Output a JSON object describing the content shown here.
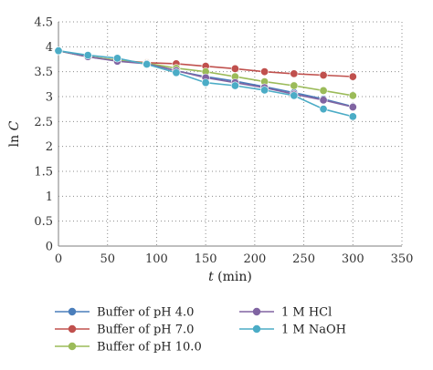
{
  "chart_data": {
    "type": "line",
    "xlabel_var": "t",
    "xlabel_unit": " (min)",
    "ylabel_prefix": "ln ",
    "ylabel_var": "C",
    "xlim": [
      0,
      350
    ],
    "ylim": [
      0,
      4.5
    ],
    "xticks": [
      0,
      50,
      100,
      150,
      200,
      250,
      300,
      350
    ],
    "yticks": [
      0,
      0.5,
      1,
      1.5,
      2,
      2.5,
      3,
      3.5,
      4,
      4.5
    ],
    "x": [
      0,
      30,
      60,
      90,
      120,
      150,
      180,
      210,
      240,
      270,
      300
    ],
    "grid": "dotted",
    "legend_position": "bottom",
    "series": [
      {
        "name": "Buffer of pH 4.0",
        "color": "#4a7ebb",
        "values": [
          3.92,
          3.8,
          3.72,
          3.67,
          3.52,
          3.4,
          3.31,
          3.2,
          3.08,
          2.95,
          2.8
        ]
      },
      {
        "name": "Buffer of pH 7.0",
        "color": "#c0504d",
        "values": [
          3.92,
          3.8,
          3.73,
          3.68,
          3.66,
          3.61,
          3.56,
          3.5,
          3.46,
          3.43,
          3.4
        ]
      },
      {
        "name": "Buffer of pH 10.0",
        "color": "#9bbb59",
        "values": [
          3.92,
          3.8,
          3.73,
          3.67,
          3.57,
          3.5,
          3.4,
          3.3,
          3.22,
          3.12,
          3.02
        ]
      },
      {
        "name": "1 M HCl",
        "color": "#8064a2",
        "values": [
          3.92,
          3.8,
          3.71,
          3.66,
          3.52,
          3.38,
          3.28,
          3.18,
          3.05,
          2.93,
          2.79
        ]
      },
      {
        "name": "1 M NaOH",
        "color": "#4bacc6",
        "values": [
          3.92,
          3.83,
          3.77,
          3.65,
          3.48,
          3.28,
          3.22,
          3.13,
          3.02,
          2.75,
          2.6
        ]
      }
    ]
  }
}
